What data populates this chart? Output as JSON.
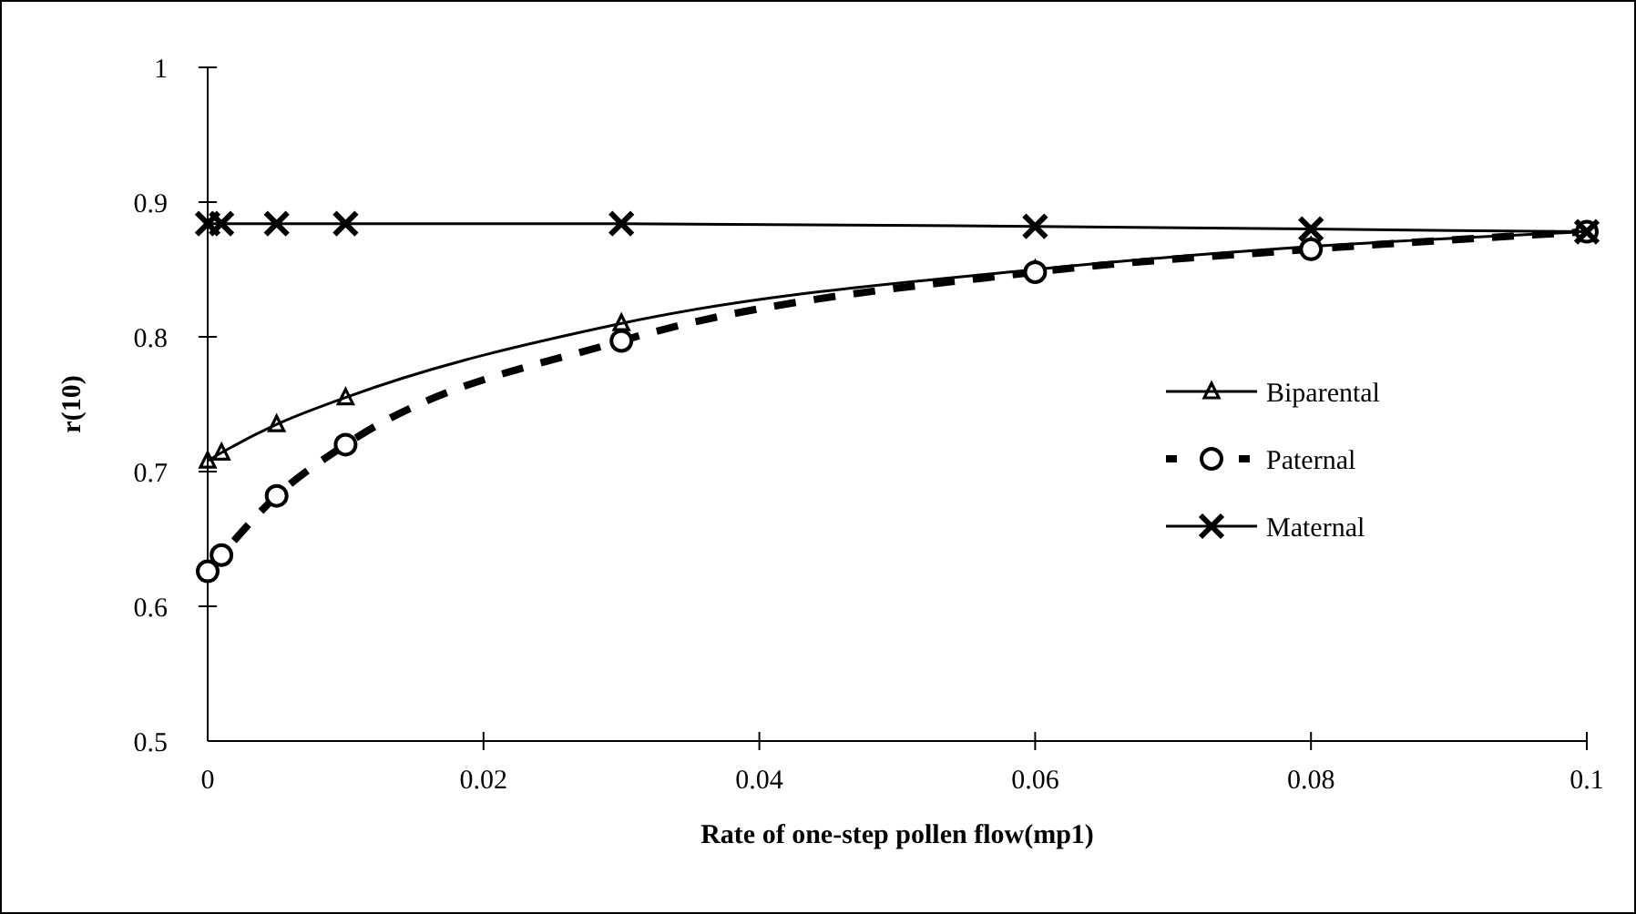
{
  "chart_data": {
    "type": "line",
    "xlabel": "Rate of one-step pollen flow(mp1)",
    "ylabel": "r(10)",
    "x": [
      0,
      0.001,
      0.005,
      0.01,
      0.03,
      0.06,
      0.08,
      0.1
    ],
    "series": [
      {
        "name": "Biparental",
        "color": "#000000",
        "marker": "triangle",
        "line_style": "solid",
        "values": [
          0.708,
          0.714,
          0.735,
          0.755,
          0.81,
          0.85,
          0.867,
          0.878
        ]
      },
      {
        "name": "Paternal",
        "color": "#000000",
        "marker": "circle",
        "line_style": "dashed",
        "values": [
          0.626,
          0.638,
          0.682,
          0.72,
          0.797,
          0.848,
          0.865,
          0.878
        ]
      },
      {
        "name": "Maternal",
        "color": "#000000",
        "marker": "cross",
        "line_style": "solid",
        "values": [
          0.884,
          0.884,
          0.884,
          0.884,
          0.884,
          0.882,
          0.88,
          0.878
        ]
      }
    ],
    "xlim": [
      0,
      0.1
    ],
    "xticks": [
      0,
      0.02,
      0.04,
      0.06,
      0.08,
      0.1
    ],
    "ylim": [
      0.5,
      1
    ],
    "yticks": [
      0.5,
      0.6,
      0.7,
      0.8,
      0.9,
      1
    ],
    "grid": false,
    "legend": "right"
  }
}
